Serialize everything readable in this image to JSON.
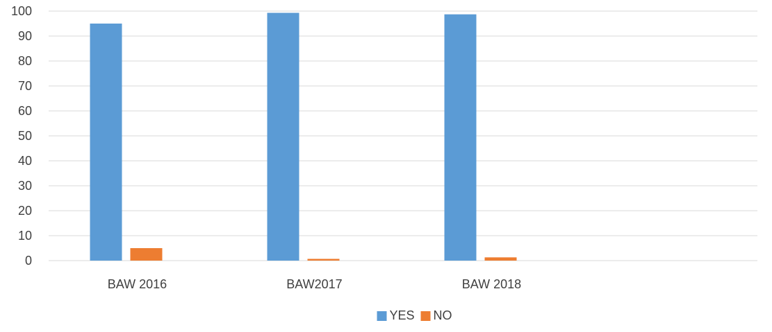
{
  "chart_data": {
    "type": "bar",
    "title": "",
    "xlabel": "",
    "ylabel": "",
    "categories": [
      "BAW 2016",
      "BAW2017",
      "BAW 2018",
      ""
    ],
    "series": [
      {
        "name": "YES",
        "values": [
          95,
          99.3,
          98.7,
          null
        ],
        "color": "#5B9BD5"
      },
      {
        "name": "NO",
        "values": [
          5,
          0.7,
          1.3,
          null
        ],
        "color": "#ED7D31"
      }
    ],
    "ylim": [
      0,
      100
    ],
    "yticks": [
      0,
      10,
      20,
      30,
      40,
      50,
      60,
      70,
      80,
      90,
      100
    ],
    "grid": true,
    "legend_position": "bottom"
  }
}
